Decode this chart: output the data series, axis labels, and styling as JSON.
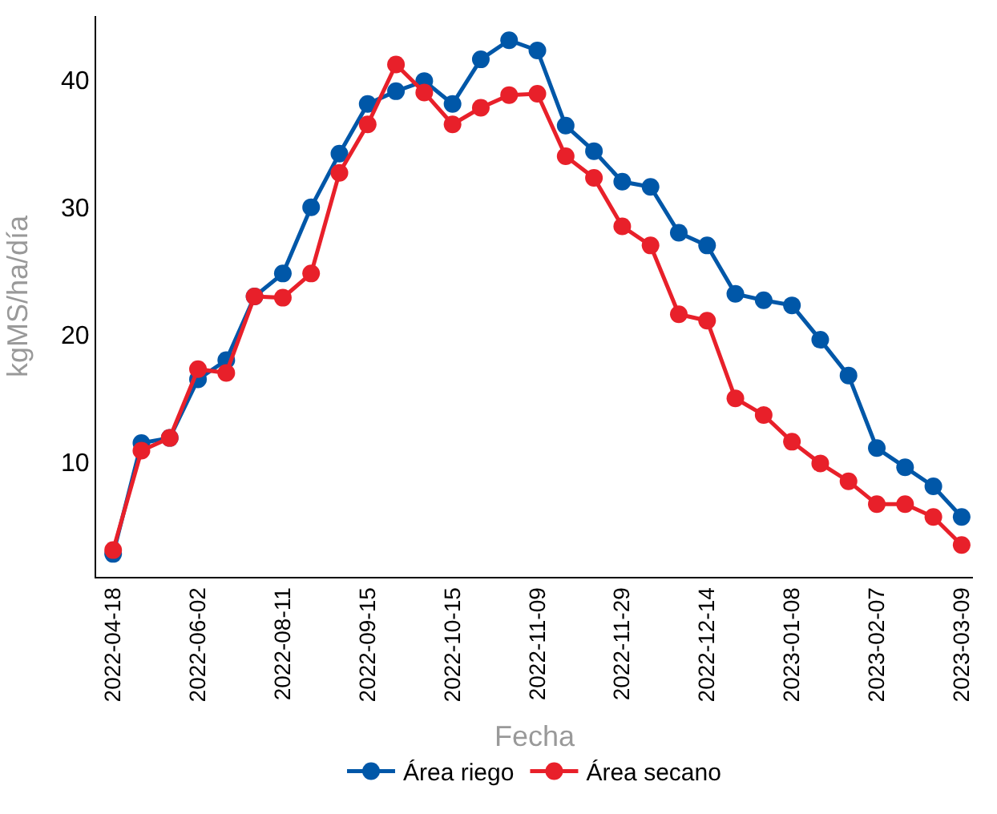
{
  "chart_data": {
    "type": "line",
    "xlabel": "Fecha",
    "ylabel": "kgMS/ha/día",
    "categories": [
      "2022-04-18",
      null,
      null,
      "2022-06-02",
      null,
      null,
      "2022-08-11",
      null,
      null,
      "2022-09-15",
      null,
      null,
      "2022-10-15",
      null,
      null,
      "2022-11-09",
      null,
      null,
      "2022-11-29",
      null,
      null,
      "2022-12-14",
      null,
      null,
      "2023-01-08",
      null,
      null,
      "2023-02-07",
      null,
      null,
      "2023-03-09"
    ],
    "series": [
      {
        "name": "Área riego",
        "color": "#0057a8",
        "values": [
          2.8,
          11.5,
          11.9,
          16.5,
          18.0,
          23.0,
          24.8,
          30.0,
          34.2,
          38.1,
          39.1,
          39.9,
          38.1,
          41.6,
          43.1,
          42.3,
          36.4,
          34.4,
          32.0,
          31.6,
          28.0,
          27.0,
          23.2,
          22.7,
          22.3,
          19.6,
          16.8,
          11.1,
          9.6,
          8.1,
          5.7
        ]
      },
      {
        "name": "Área secano",
        "color": "#e8202a",
        "values": [
          3.1,
          10.9,
          11.9,
          17.3,
          17.0,
          23.0,
          22.9,
          24.8,
          32.7,
          36.5,
          41.2,
          39.0,
          36.5,
          37.8,
          38.8,
          38.9,
          34.0,
          32.3,
          28.5,
          27.0,
          21.6,
          21.1,
          15.0,
          13.7,
          11.6,
          9.9,
          8.5,
          6.7,
          6.7,
          5.7,
          3.5
        ]
      }
    ],
    "ylim": [
      1,
      45
    ],
    "yticks": [
      10,
      20,
      30,
      40
    ],
    "legend": "bottom",
    "marker": "circle",
    "line_style": "solid"
  }
}
